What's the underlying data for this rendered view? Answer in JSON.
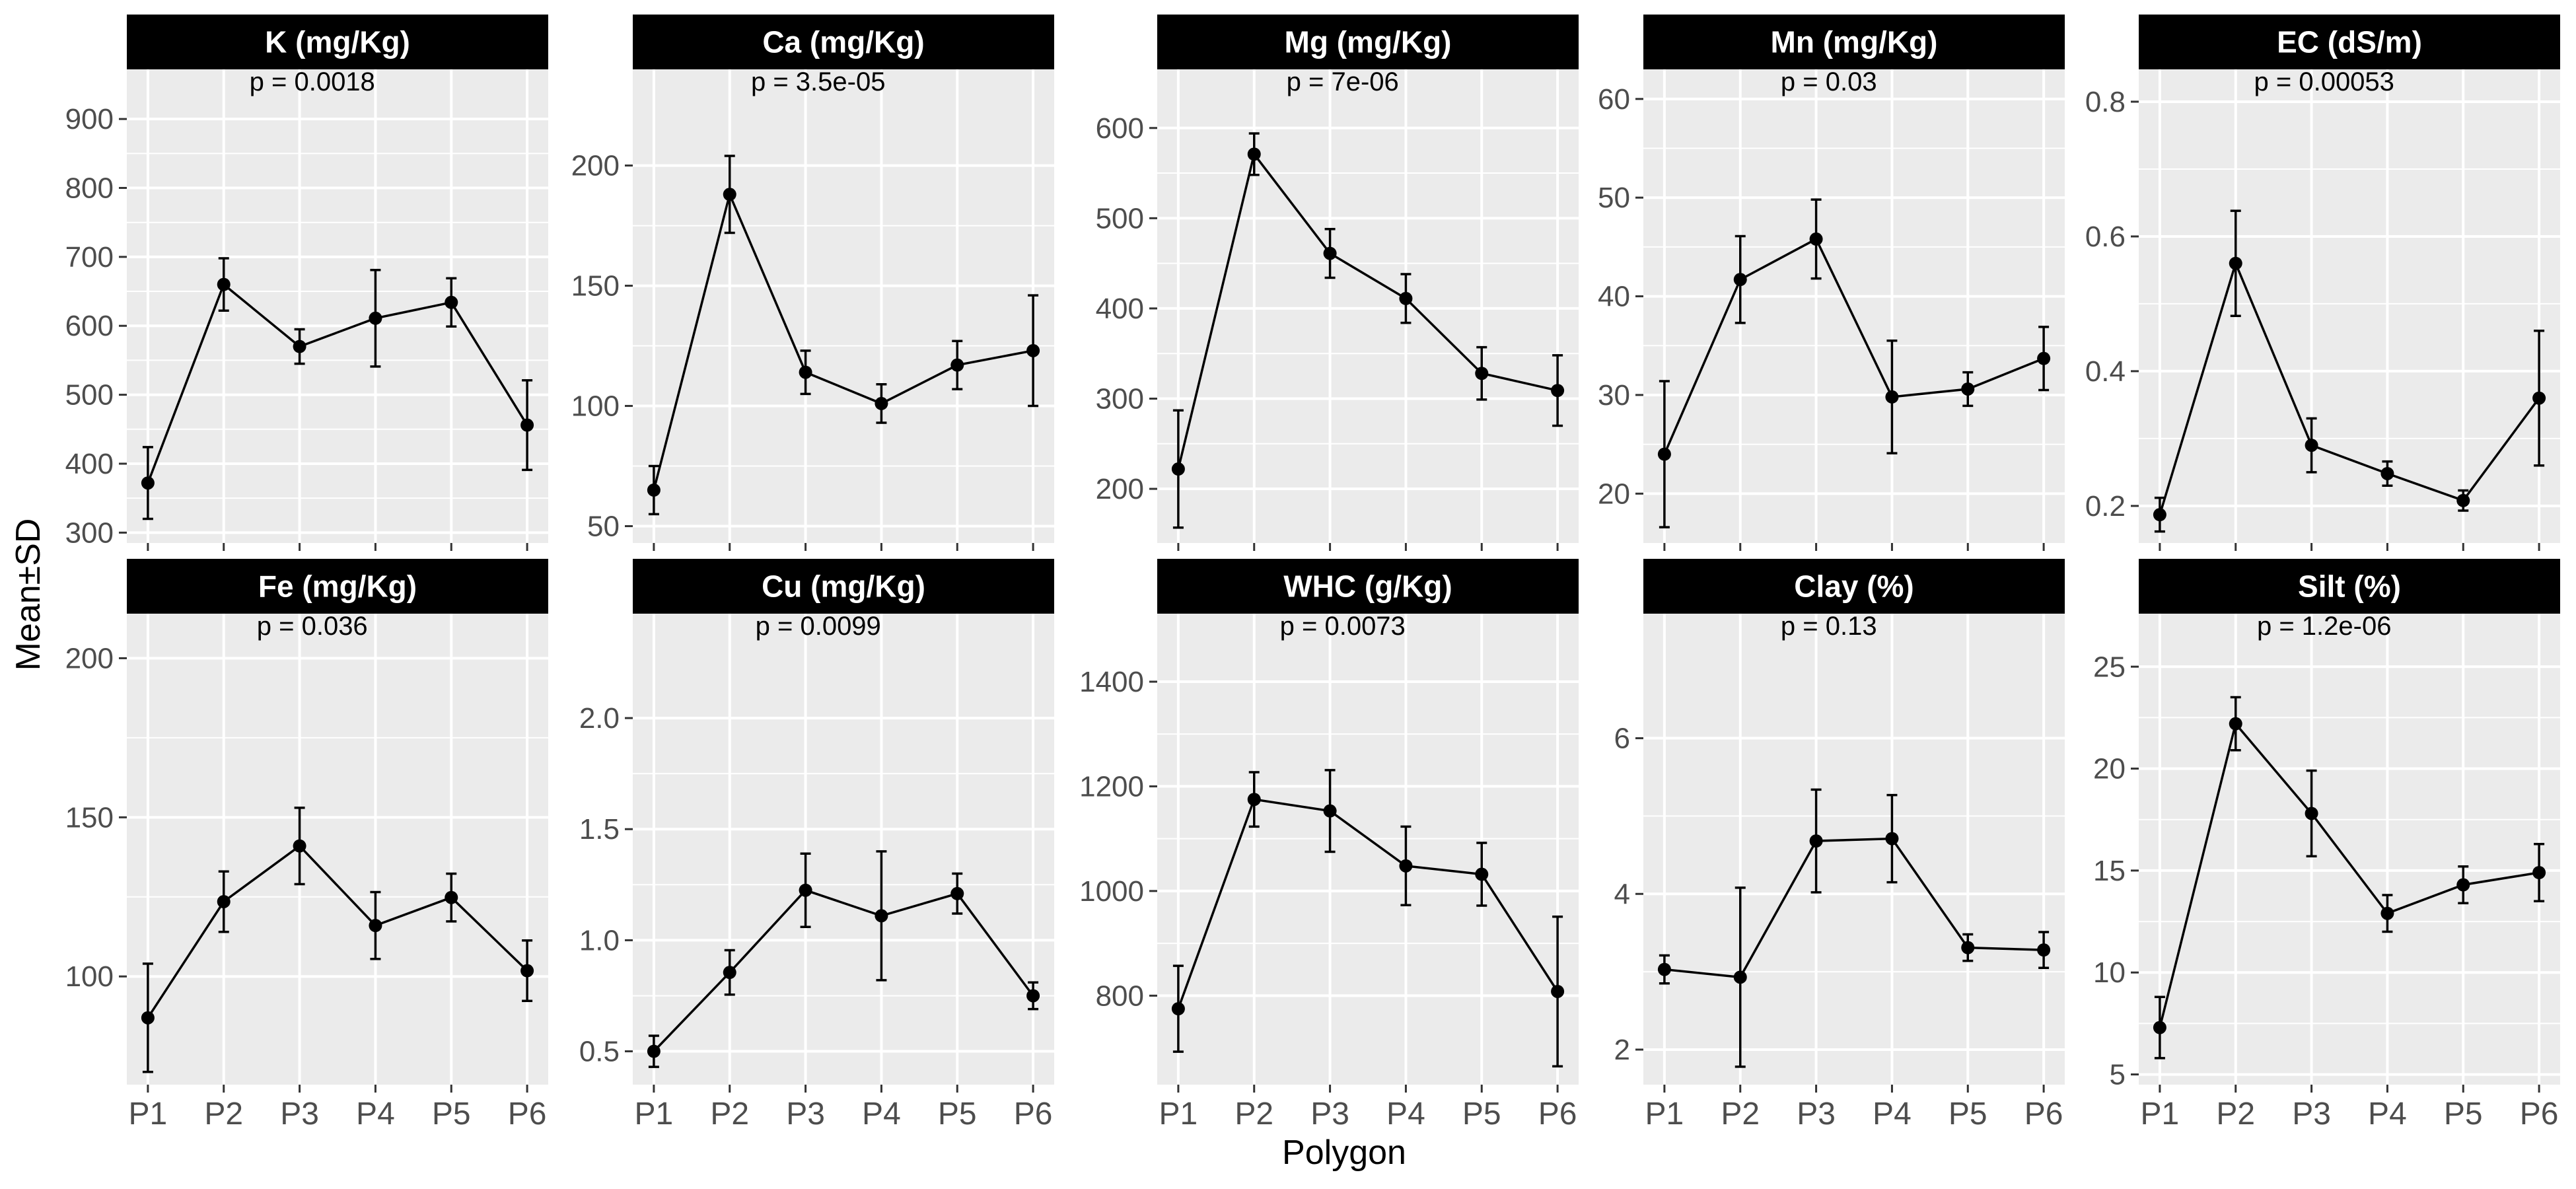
{
  "figure": {
    "xlabel": "Polygon",
    "ylabel": "Mean±SD"
  },
  "colors": {
    "panel_bg": "#ebebeb",
    "grid": "#ffffff",
    "strip_bg": "#000000",
    "strip_text": "#ffffff",
    "line": "#000000",
    "tick_text": "#4d4d4d"
  },
  "chart_data": [
    {
      "type": "line",
      "title": "K (mg/Kg)",
      "annotation": "p = 0.0018",
      "categories": [
        "P1",
        "P2",
        "P3",
        "P4",
        "P5",
        "P6"
      ],
      "values": [
        372,
        660,
        570,
        611,
        634,
        456
      ],
      "errors": [
        52,
        38,
        25,
        70,
        35,
        65
      ],
      "yticks": [
        300,
        400,
        500,
        600,
        700,
        800,
        900
      ],
      "ylim": [
        285,
        972
      ]
    },
    {
      "type": "line",
      "title": "Ca (mg/Kg)",
      "annotation": "p = 3.5e-05",
      "categories": [
        "P1",
        "P2",
        "P3",
        "P4",
        "P5",
        "P6"
      ],
      "values": [
        65,
        188,
        114,
        101,
        117,
        123
      ],
      "errors": [
        10,
        16,
        9,
        8,
        10,
        23
      ],
      "yticks": [
        50,
        100,
        150,
        200
      ],
      "ylim": [
        43,
        240
      ]
    },
    {
      "type": "line",
      "title": "Mg (mg/Kg)",
      "annotation": "p = 7e-06",
      "categories": [
        "P1",
        "P2",
        "P3",
        "P4",
        "P5",
        "P6"
      ],
      "values": [
        222,
        571,
        461,
        411,
        328,
        309
      ],
      "errors": [
        65,
        23,
        27,
        27,
        29,
        39
      ],
      "yticks": [
        200,
        300,
        400,
        500,
        600
      ],
      "ylim": [
        140,
        665
      ]
    },
    {
      "type": "line",
      "title": "Mn (mg/Kg)",
      "annotation": "p = 0.03",
      "categories": [
        "P1",
        "P2",
        "P3",
        "P4",
        "P5",
        "P6"
      ],
      "values": [
        24,
        41.7,
        45.8,
        29.8,
        30.6,
        33.7
      ],
      "errors": [
        7.4,
        4.4,
        4,
        5.7,
        1.7,
        3.2
      ],
      "yticks": [
        20,
        30,
        40,
        50,
        60
      ],
      "ylim": [
        15,
        63
      ]
    },
    {
      "type": "line",
      "title": "EC  (dS/m)",
      "annotation": "p = 0.00053",
      "categories": [
        "P1",
        "P2",
        "P3",
        "P4",
        "P5",
        "P6"
      ],
      "values": [
        0.187,
        0.56,
        0.29,
        0.248,
        0.208,
        0.36
      ],
      "errors": [
        0.025,
        0.078,
        0.04,
        0.018,
        0.015,
        0.1
      ],
      "yticks": [
        0.2,
        0.4,
        0.6,
        0.8
      ],
      "ylim": [
        0.145,
        0.848
      ]
    },
    {
      "type": "line",
      "title": "Fe (mg/Kg)",
      "annotation": "p = 0.036",
      "categories": [
        "P1",
        "P2",
        "P3",
        "P4",
        "P5",
        "P6"
      ],
      "values": [
        87,
        123.5,
        141,
        116,
        124.8,
        101.8
      ],
      "errors": [
        17,
        9.5,
        12,
        10.5,
        7.5,
        9.5
      ],
      "yticks": [
        100,
        150,
        200
      ],
      "ylim": [
        66,
        214
      ]
    },
    {
      "type": "line",
      "title": "Cu (mg/Kg)",
      "annotation": "p = 0.0099",
      "categories": [
        "P1",
        "P2",
        "P3",
        "P4",
        "P5",
        "P6"
      ],
      "values": [
        0.5,
        0.855,
        1.225,
        1.11,
        1.21,
        0.75
      ],
      "errors": [
        0.07,
        0.1,
        0.165,
        0.29,
        0.09,
        0.06
      ],
      "yticks": [
        0.5,
        1.0,
        1.5,
        2.0
      ],
      "ylim": [
        0.35,
        2.47
      ]
    },
    {
      "type": "line",
      "title": "WHC (g/Kg)",
      "annotation": "p = 0.0073",
      "categories": [
        "P1",
        "P2",
        "P3",
        "P4",
        "P5",
        "P6"
      ],
      "values": [
        775,
        1175,
        1153,
        1048,
        1032,
        808
      ],
      "errors": [
        82,
        52,
        78,
        75,
        60,
        143
      ],
      "yticks": [
        800,
        1000,
        1200,
        1400
      ],
      "ylim": [
        630,
        1530
      ]
    },
    {
      "type": "line",
      "title": "Clay (%)",
      "annotation": "p = 0.13",
      "categories": [
        "P1",
        "P2",
        "P3",
        "P4",
        "P5",
        "P6"
      ],
      "values": [
        3.03,
        2.93,
        4.68,
        4.71,
        3.31,
        3.28
      ],
      "errors": [
        0.18,
        1.15,
        0.66,
        0.56,
        0.17,
        0.23
      ],
      "yticks": [
        2,
        4,
        6
      ],
      "ylim": [
        1.55,
        7.6
      ]
    },
    {
      "type": "line",
      "title": "Silt (%)",
      "annotation": "p = 1.2e-06",
      "categories": [
        "P1",
        "P2",
        "P3",
        "P4",
        "P5",
        "P6"
      ],
      "values": [
        7.3,
        22.2,
        17.8,
        12.9,
        14.3,
        14.9
      ],
      "errors": [
        1.5,
        1.3,
        2.1,
        0.9,
        0.9,
        1.4
      ],
      "yticks": [
        5,
        10,
        15,
        20,
        25
      ],
      "ylim": [
        4.5,
        27.6
      ]
    }
  ]
}
